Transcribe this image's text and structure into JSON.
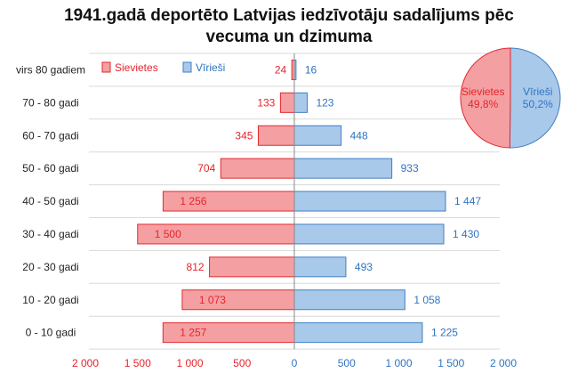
{
  "title_line1": "1941.gadā deportēto Latvijas iedzīvotāju sadalījums pēc",
  "title_line2": "vecuma un dzimuma",
  "colors": {
    "female_fill": "#f4a0a2",
    "female_stroke": "#e2282f",
    "female_text": "#e4252c",
    "male_fill": "#a9c9ea",
    "male_stroke": "#3f7fc4",
    "male_text": "#2e74c2",
    "grid": "#d9d9d9"
  },
  "chart_data": {
    "type": "bar",
    "orientation": "horizontal",
    "categories": [
      "virs 80 gadiem",
      "70 - 80 gadi",
      "60 - 70 gadi",
      "50 - 60 gadi",
      "40 - 50 gadi",
      "30 - 40 gadi",
      "20 - 30 gadi",
      "10 - 20 gadi",
      "0 - 10 gadi"
    ],
    "series": [
      {
        "name": "Sievietes",
        "values": [
          24,
          133,
          345,
          704,
          1256,
          1500,
          812,
          1073,
          1257
        ],
        "labels": [
          "24",
          "133",
          "345",
          "704",
          "1 256",
          "1 500",
          "812",
          "1 073",
          "1 257"
        ]
      },
      {
        "name": "Vīrieši",
        "values": [
          16,
          123,
          448,
          933,
          1447,
          1430,
          493,
          1058,
          1225
        ],
        "labels": [
          "16",
          "123",
          "448",
          "933",
          "1 447",
          "1 430",
          "493",
          "1 058",
          "1 225"
        ]
      }
    ],
    "xlim": [
      -2000,
      2000
    ],
    "xticks": [
      -2000,
      -1500,
      -1000,
      -500,
      0,
      500,
      1000,
      1500,
      2000
    ],
    "xtick_labels": [
      "2 000",
      "1 500",
      "1 000",
      "500",
      "0",
      "500",
      "1 000",
      "1 500",
      "2 000"
    ],
    "legend": [
      "Sievietes",
      "Vīrieši"
    ],
    "legend_position": "top-left",
    "grid": true
  },
  "pie_data": {
    "type": "pie",
    "slices": [
      {
        "name": "Sievietes",
        "value": 49.8,
        "label": "49,8%"
      },
      {
        "name": "Vīrieši",
        "value": 50.2,
        "label": "50,2%"
      }
    ]
  }
}
